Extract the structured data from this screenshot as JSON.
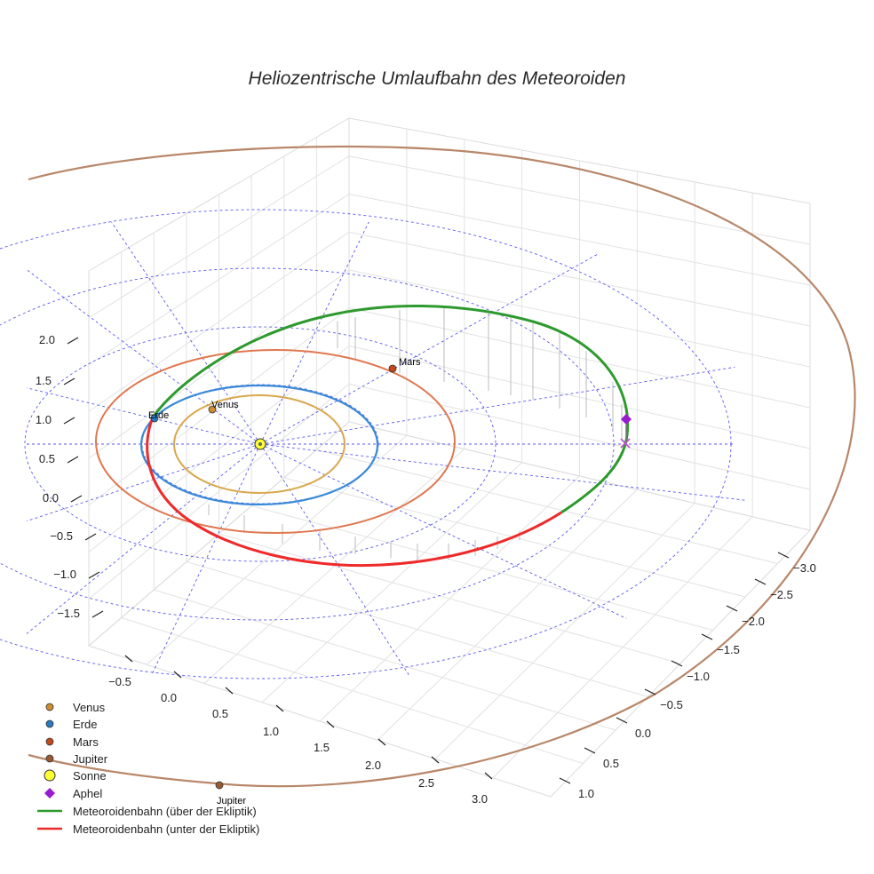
{
  "chart_data": {
    "type": "line",
    "title": "Heliozentrische Umlaufbahn des Meteoroiden",
    "axes": {
      "x": {
        "ticks": [
          "−0.5",
          "0.0",
          "0.5",
          "1.0",
          "1.5",
          "2.0",
          "2.5",
          "3.0"
        ]
      },
      "y": {
        "ticks": [
          "−3.0",
          "−2.5",
          "−2.0",
          "−1.5",
          "−1.0",
          "−0.5",
          "0.0",
          "0.5",
          "1.0"
        ]
      },
      "z": {
        "ticks": [
          "2.0",
          "1.5",
          "1.0",
          "0.5",
          "0.0",
          "−0.5",
          "−1.0",
          "−1.5"
        ]
      }
    },
    "grid": true,
    "legend_position": "bottom-left",
    "planets": [
      {
        "name": "Venus",
        "label": "Venus",
        "color": "#d08c2e",
        "orbit_color": "#d9a84e",
        "orbit_radius_au": 0.72
      },
      {
        "name": "Erde",
        "label": "Erde",
        "color": "#2a7ac0",
        "orbit_color": "#3a8ad8",
        "orbit_radius_au": 1.0
      },
      {
        "name": "Mars",
        "label": "Mars",
        "color": "#c14a1a",
        "orbit_color": "#e07850",
        "orbit_radius_au": 1.52
      },
      {
        "name": "Jupiter",
        "label": "Jupiter",
        "color": "#9a5a30",
        "orbit_color": "#b8876a",
        "orbit_radius_au": 5.2
      }
    ],
    "sun": {
      "name": "Sonne",
      "color": "#ffff33"
    },
    "aphel": {
      "name": "Aphel",
      "color": "#9a1ad0"
    },
    "series": [
      {
        "name": "Meteoroidenbahn (über der Ekliptik)",
        "color": "#2e9a2e"
      },
      {
        "name": "Meteoroidenbahn (unter der Ekliptik)",
        "color": "#ee2a2a"
      }
    ],
    "legend": [
      {
        "label": "Venus",
        "marker": "circle",
        "color": "#d08c2e"
      },
      {
        "label": "Erde",
        "marker": "circle",
        "color": "#2a7ac0"
      },
      {
        "label": "Mars",
        "marker": "circle",
        "color": "#c14a1a"
      },
      {
        "label": "Jupiter",
        "marker": "circle",
        "color": "#9a5a30"
      },
      {
        "label": "Sonne",
        "marker": "circle-large",
        "color": "#ffff33"
      },
      {
        "label": "Aphel",
        "marker": "diamond",
        "color": "#9a1ad0"
      },
      {
        "label": "Meteoroidenbahn (über der Ekliptik)",
        "marker": "line",
        "color": "#2e9a2e"
      },
      {
        "label": "Meteoroidenbahn (unter der Ekliptik)",
        "marker": "line",
        "color": "#ee2a2a"
      }
    ]
  }
}
